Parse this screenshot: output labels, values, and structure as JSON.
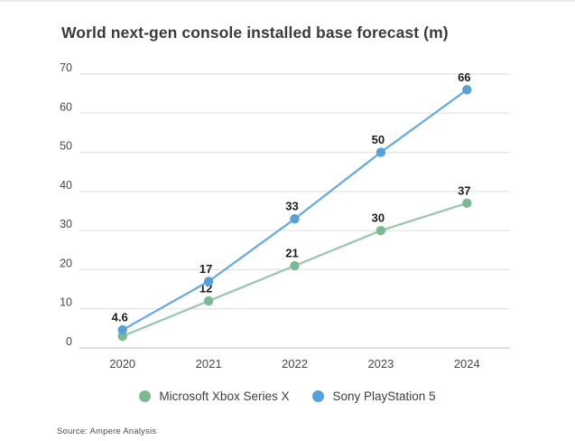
{
  "title": "World next-gen console installed base forecast (m)",
  "source": "Source: Ampere Analysis",
  "chart_data": {
    "type": "line",
    "title": "World next-gen console installed base forecast (m)",
    "xlabel": "",
    "ylabel": "",
    "x": [
      "2020",
      "2021",
      "2022",
      "2023",
      "2024"
    ],
    "series": [
      {
        "name": "Microsoft Xbox Series X",
        "marker_color": "#7db893",
        "line_color": "#9cc6ad",
        "values": [
          3,
          12,
          21,
          30,
          37
        ],
        "point_labels": [
          "",
          "12",
          "21",
          "30",
          "37"
        ]
      },
      {
        "name": "Sony PlayStation 5",
        "marker_color": "#58a1d8",
        "line_color": "#6aabdc",
        "values": [
          4.6,
          17,
          33,
          50,
          66
        ],
        "point_labels": [
          "4.6",
          "17",
          "33",
          "50",
          "66"
        ]
      }
    ],
    "ylim": [
      0,
      70
    ],
    "yticks": [
      0,
      10,
      20,
      30,
      40,
      50,
      60,
      70
    ],
    "grid": true,
    "legend_position": "bottom",
    "colors": {
      "gridline": "#e4e4e4",
      "axis_line": "#c9c9c9",
      "tick_text": "#474747",
      "data_label_text": "#1c1c1c"
    }
  }
}
